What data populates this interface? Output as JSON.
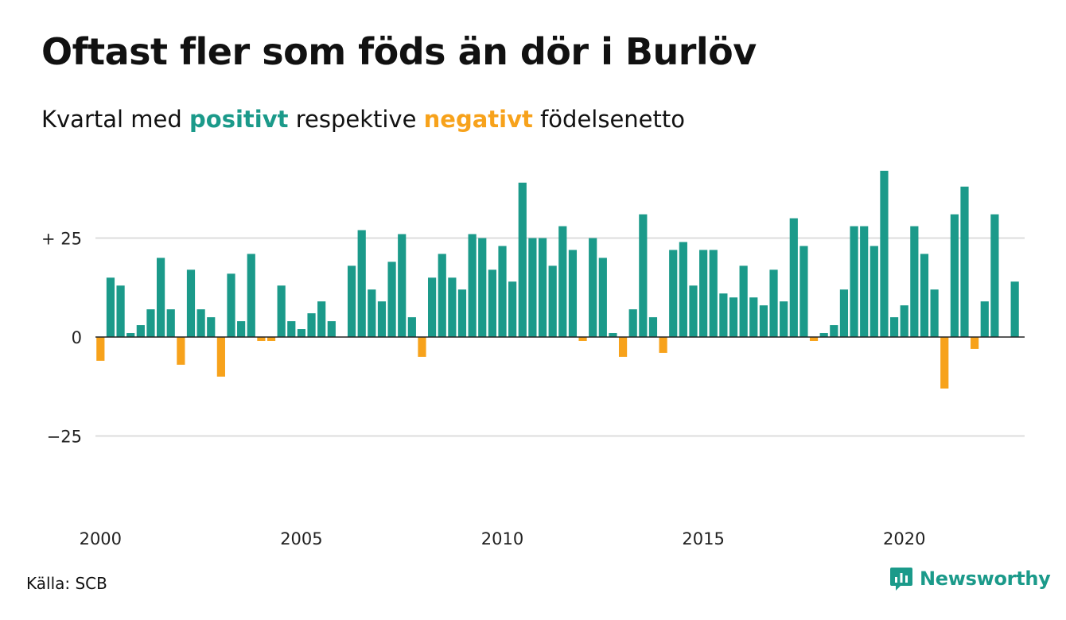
{
  "header": {
    "title": "Oftast fler som föds än dör i Burlöv",
    "subtitle_prefix": "Kvartal med",
    "subtitle_positive": "positivt",
    "subtitle_middle": "respektive",
    "subtitle_negative": "negativt",
    "subtitle_suffix": "födelsenetto"
  },
  "footer": {
    "source": "Källa: SCB",
    "brand": "Newsworthy"
  },
  "colors": {
    "positive": "#1b9a8a",
    "negative": "#f7a21b",
    "grid": "#dddddd",
    "zero_line": "#222222"
  },
  "chart_data": {
    "type": "bar",
    "x_unit": "quarter",
    "x_start": "2000 Q1",
    "values": [
      -6,
      15,
      13,
      1,
      3,
      7,
      20,
      7,
      -7,
      17,
      7,
      5,
      -10,
      16,
      4,
      21,
      -1,
      -1,
      13,
      4,
      2,
      6,
      9,
      4,
      0,
      18,
      27,
      12,
      9,
      19,
      26,
      5,
      -5,
      15,
      21,
      15,
      12,
      26,
      25,
      17,
      23,
      14,
      39,
      25,
      25,
      18,
      28,
      22,
      -1,
      25,
      20,
      1,
      -5,
      7,
      31,
      5,
      -4,
      22,
      24,
      13,
      22,
      22,
      11,
      10,
      18,
      10,
      8,
      17,
      9,
      30,
      23,
      -1,
      1,
      3,
      12,
      28,
      28,
      23,
      42,
      5,
      8,
      28,
      21,
      12,
      -13,
      31,
      38,
      -3,
      9,
      31,
      0,
      14
    ],
    "ylim": [
      -45,
      45
    ],
    "y_ticks": [
      {
        "value": 25,
        "label": "+ 25"
      },
      {
        "value": 0,
        "label": "0"
      },
      {
        "value": -25,
        "label": "−25"
      }
    ],
    "x_ticks": [
      {
        "year": 2000,
        "label": "2000"
      },
      {
        "year": 2005,
        "label": "2005"
      },
      {
        "year": 2010,
        "label": "2010"
      },
      {
        "year": 2015,
        "label": "2015"
      },
      {
        "year": 2020,
        "label": "2020"
      }
    ],
    "grid": true,
    "legend": "none"
  }
}
